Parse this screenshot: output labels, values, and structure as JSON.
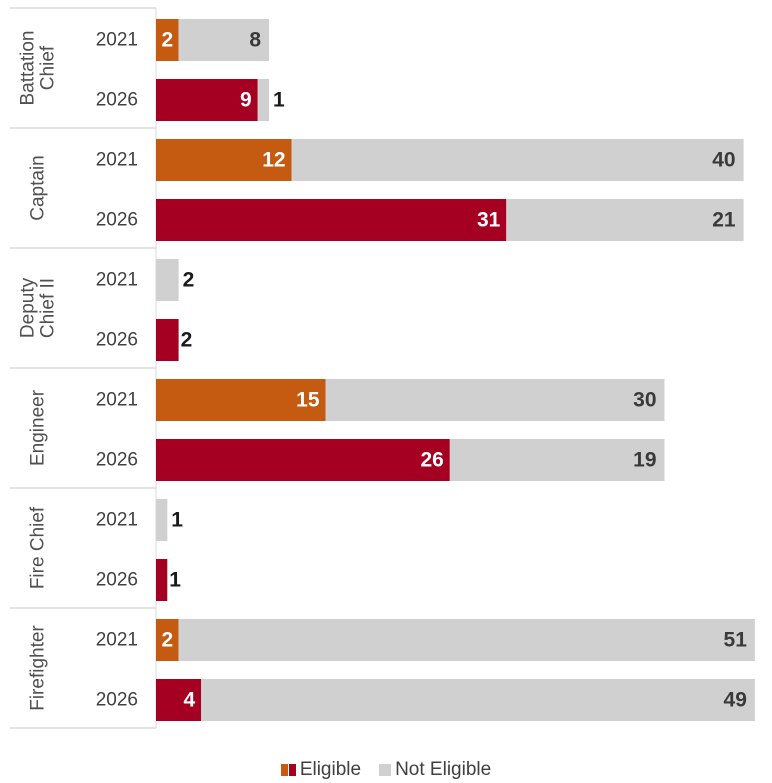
{
  "colors": {
    "eligible_2021": "#C55A11",
    "eligible_2026": "#A50021",
    "not_eligible": "#D0D0D0",
    "label_inside_eligible": "#ffffff",
    "label_dark": "#3a3a3a",
    "label_outside": "#1a1a1a",
    "separator": "#d9d9d9"
  },
  "legend": {
    "eligible": "Eligible",
    "not_eligible": "Not Eligible"
  },
  "chart_data": {
    "type": "bar",
    "orientation": "horizontal",
    "stacked": true,
    "legend_position": "bottom",
    "grid": false,
    "title": "",
    "xlabel": "",
    "ylabel": "",
    "groups": [
      {
        "name": "Battalion Chief",
        "name_lines": [
          "Battation",
          "Chief"
        ],
        "rows": [
          {
            "year": "2021",
            "eligible": 2,
            "not_eligible": 8
          },
          {
            "year": "2026",
            "eligible": 9,
            "not_eligible": 1
          }
        ]
      },
      {
        "name": "Captain",
        "name_lines": [
          "Captain"
        ],
        "rows": [
          {
            "year": "2021",
            "eligible": 12,
            "not_eligible": 40
          },
          {
            "year": "2026",
            "eligible": 31,
            "not_eligible": 21
          }
        ]
      },
      {
        "name": "Deputy Chief II",
        "name_lines": [
          "Deputy",
          "Chief II"
        ],
        "rows": [
          {
            "year": "2021",
            "eligible": 0,
            "not_eligible": 2
          },
          {
            "year": "2026",
            "eligible": 2,
            "not_eligible": 0
          }
        ]
      },
      {
        "name": "Engineer",
        "name_lines": [
          "Engineer"
        ],
        "rows": [
          {
            "year": "2021",
            "eligible": 15,
            "not_eligible": 30
          },
          {
            "year": "2026",
            "eligible": 26,
            "not_eligible": 19
          }
        ]
      },
      {
        "name": "Fire Chief",
        "name_lines": [
          "Fire Chief"
        ],
        "rows": [
          {
            "year": "2021",
            "eligible": 0,
            "not_eligible": 1
          },
          {
            "year": "2026",
            "eligible": 1,
            "not_eligible": 0
          }
        ]
      },
      {
        "name": "Firefighter",
        "name_lines": [
          "Firefighter"
        ],
        "rows": [
          {
            "year": "2021",
            "eligible": 2,
            "not_eligible": 51
          },
          {
            "year": "2026",
            "eligible": 4,
            "not_eligible": 49
          }
        ]
      }
    ]
  }
}
